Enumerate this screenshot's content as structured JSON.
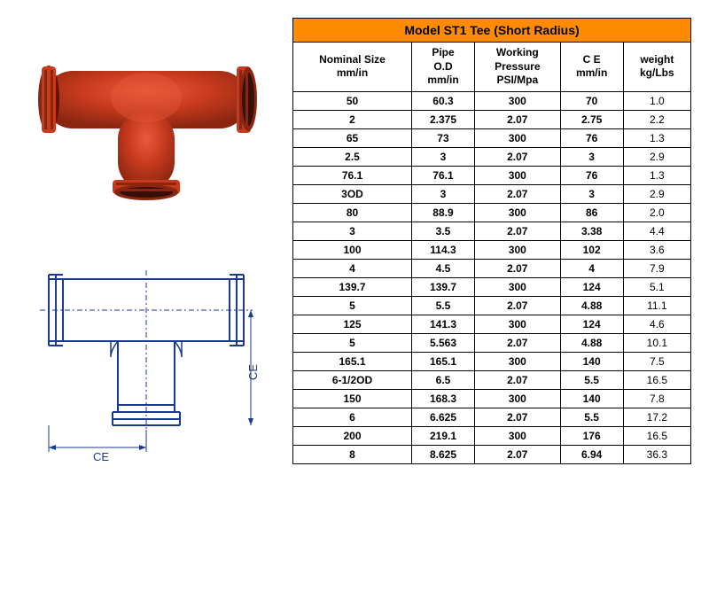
{
  "table": {
    "title": "Model ST1 Tee (Short    Radius)",
    "title_bg": "#ff8c00",
    "columns": [
      "Nominal Size mm/in",
      "Pipe O.D mm/in",
      "Working Pressure PSI/Mpa",
      "C E mm/in",
      "weight kg/Lbs"
    ],
    "rows": [
      [
        "50",
        "60.3",
        "300",
        "70",
        "1.0"
      ],
      [
        "2",
        "2.375",
        "2.07",
        "2.75",
        "2.2"
      ],
      [
        "65",
        "73",
        "300",
        "76",
        "1.3"
      ],
      [
        "2.5",
        "3",
        "2.07",
        "3",
        "2.9"
      ],
      [
        "76.1",
        "76.1",
        "300",
        "76",
        "1.3"
      ],
      [
        "3OD",
        "3",
        "2.07",
        "3",
        "2.9"
      ],
      [
        "80",
        "88.9",
        "300",
        "86",
        "2.0"
      ],
      [
        "3",
        "3.5",
        "2.07",
        "3.38",
        "4.4"
      ],
      [
        "100",
        "114.3",
        "300",
        "102",
        "3.6"
      ],
      [
        "4",
        "4.5",
        "2.07",
        "4",
        "7.9"
      ],
      [
        "139.7",
        "139.7",
        "300",
        "124",
        "5.1"
      ],
      [
        "5",
        "5.5",
        "2.07",
        "4.88",
        "11.1"
      ],
      [
        "125",
        "141.3",
        "300",
        "124",
        "4.6"
      ],
      [
        "5",
        "5.563",
        "2.07",
        "4.88",
        "10.1"
      ],
      [
        "165.1",
        "165.1",
        "300",
        "140",
        "7.5"
      ],
      [
        "6-1/2OD",
        "6.5",
        "2.07",
        "5.5",
        "16.5"
      ],
      [
        "150",
        "168.3",
        "300",
        "140",
        "7.8"
      ],
      [
        "6",
        "6.625",
        "2.07",
        "5.5",
        "17.2"
      ],
      [
        "200",
        "219.1",
        "300",
        "176",
        "16.5"
      ],
      [
        "8",
        "8.625",
        "2.07",
        "6.94",
        "36.3"
      ]
    ]
  },
  "product": {
    "body_color": "#c73a1e",
    "highlight_color": "#e85a3a",
    "shadow_color": "#8a2610"
  },
  "schematic": {
    "line_color": "#1a3a8f",
    "ce_label": "CE",
    "dim_label": "CE"
  }
}
